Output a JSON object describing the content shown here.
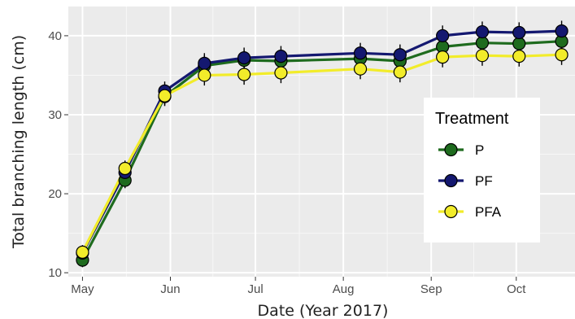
{
  "chart_data": {
    "type": "line",
    "xlabel": "Date (Year 2017)",
    "ylabel": "Total branching length (cm)",
    "ylim": [
      9.5,
      43.7
    ],
    "y_ticks": [
      10,
      20,
      30,
      40
    ],
    "x_domain": [
      "2017-04-26",
      "2017-10-22"
    ],
    "x_ticks": [
      {
        "date": "2017-05-01",
        "label": "May"
      },
      {
        "date": "2017-06-01",
        "label": "Jun"
      },
      {
        "date": "2017-07-01",
        "label": "Jul"
      },
      {
        "date": "2017-08-01",
        "label": "Aug"
      },
      {
        "date": "2017-09-01",
        "label": "Sep"
      },
      {
        "date": "2017-10-01",
        "label": "Oct"
      }
    ],
    "grid": true,
    "legend": {
      "title": "Treatment",
      "placement": "right"
    },
    "x": [
      "2017-05-01",
      "2017-05-16",
      "2017-05-30",
      "2017-06-13",
      "2017-06-27",
      "2017-07-10",
      "2017-08-07",
      "2017-08-21",
      "2017-09-05",
      "2017-09-19",
      "2017-10-02",
      "2017-10-17"
    ],
    "series": [
      {
        "name": "P",
        "color": "#1e6b1e",
        "values": [
          11.6,
          21.7,
          32.3,
          36.2,
          36.9,
          36.8,
          37.1,
          36.8,
          38.6,
          39.1,
          39.0,
          39.3
        ]
      },
      {
        "name": "PF",
        "color": "#141870",
        "values": [
          12.5,
          22.7,
          33.0,
          36.5,
          37.2,
          37.4,
          37.8,
          37.6,
          40.0,
          40.5,
          40.4,
          40.6
        ]
      },
      {
        "name": "PFA",
        "color": "#f2ec2a",
        "values": [
          12.6,
          23.2,
          32.4,
          35.0,
          35.1,
          35.3,
          35.8,
          35.4,
          37.3,
          37.5,
          37.4,
          37.6
        ]
      }
    ],
    "error": [
      0.9,
      1.0,
      1.2,
      1.3,
      1.3,
      1.3,
      1.3,
      1.3,
      1.3,
      1.3,
      1.3,
      1.3
    ]
  }
}
